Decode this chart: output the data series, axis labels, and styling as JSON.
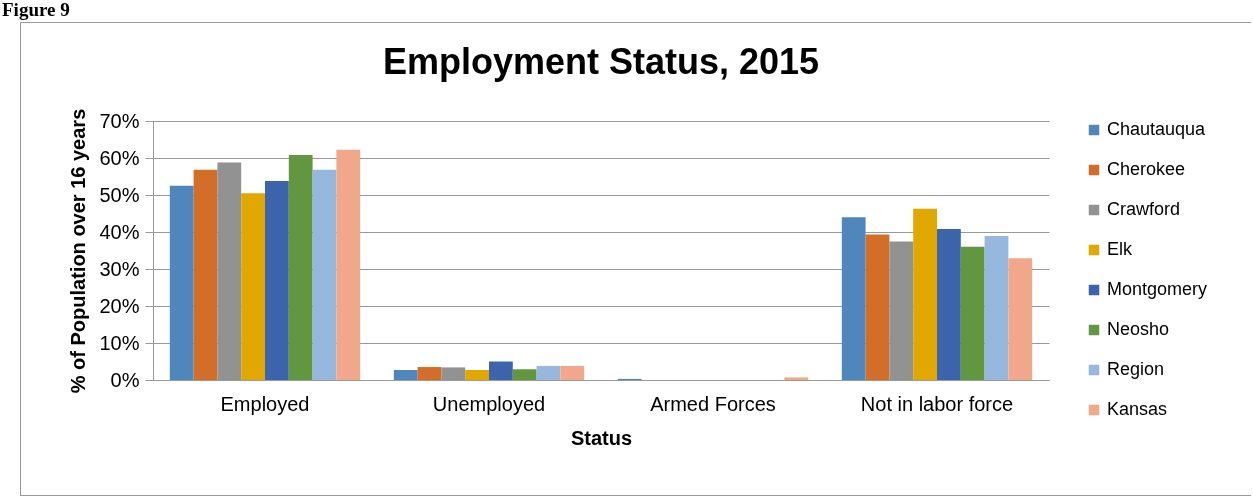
{
  "chart_data": {
    "type": "bar",
    "title": "Employment Status, 2015",
    "xlabel": "Status",
    "ylabel": "% of Population over 16 years",
    "annotations": [
      "Figure 9"
    ],
    "categories": [
      "Employed",
      "Unemployed",
      "Armed Forces",
      "Not in labor force"
    ],
    "series": [
      {
        "name": "Chautauqua",
        "color": "#4f87bd",
        "values": [
          52.5,
          2.7,
          0.3,
          44.0
        ]
      },
      {
        "name": "Cherokee",
        "color": "#d36d2a",
        "values": [
          56.8,
          3.5,
          0,
          39.3
        ]
      },
      {
        "name": "Crawford",
        "color": "#929292",
        "values": [
          58.8,
          3.4,
          0,
          37.4
        ]
      },
      {
        "name": "Elk",
        "color": "#e0a800",
        "values": [
          50.5,
          2.7,
          0,
          46.3
        ]
      },
      {
        "name": "Montgomery",
        "color": "#3b64ad",
        "values": [
          53.8,
          5.0,
          0,
          40.8
        ]
      },
      {
        "name": "Neosho",
        "color": "#62973f",
        "values": [
          60.8,
          2.9,
          0,
          36.0
        ]
      },
      {
        "name": "Region",
        "color": "#96b8df",
        "values": [
          56.8,
          3.8,
          0,
          38.9
        ]
      },
      {
        "name": "Kansas",
        "color": "#f0a78a",
        "values": [
          62.2,
          3.8,
          0.7,
          32.9
        ]
      }
    ],
    "ylim": [
      0,
      70
    ],
    "yticks": [
      {
        "value": 0,
        "label": "0%"
      },
      {
        "value": 10,
        "label": "10%"
      },
      {
        "value": 20,
        "label": "20%"
      },
      {
        "value": 30,
        "label": "30%"
      },
      {
        "value": 40,
        "label": "40%"
      },
      {
        "value": 50,
        "label": "50%"
      },
      {
        "value": 60,
        "label": "60%"
      },
      {
        "value": 70,
        "label": "70%"
      }
    ],
    "grid": "y",
    "legend": "right"
  }
}
